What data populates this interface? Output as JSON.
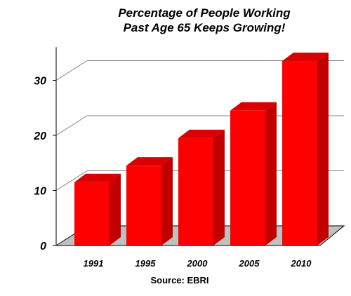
{
  "chart_data": {
    "type": "bar",
    "title_lines": [
      "Percentage of People Working",
      "Past Age 65 Keeps Growing!"
    ],
    "categories": [
      "1991",
      "1995",
      "2000",
      "2005",
      "2010"
    ],
    "values": [
      11.5,
      14.5,
      19.5,
      24.5,
      33.5
    ],
    "yticks": [
      0,
      10,
      20,
      30
    ],
    "ylim": [
      0,
      35
    ],
    "grid": true,
    "three_d": true,
    "source": "Source: EBRI",
    "colors": {
      "bar_front": "#ff0000",
      "bar_side": "#c00000",
      "bar_top": "#d80000",
      "floor": "#c0c0c0",
      "grid": "#808080"
    }
  }
}
